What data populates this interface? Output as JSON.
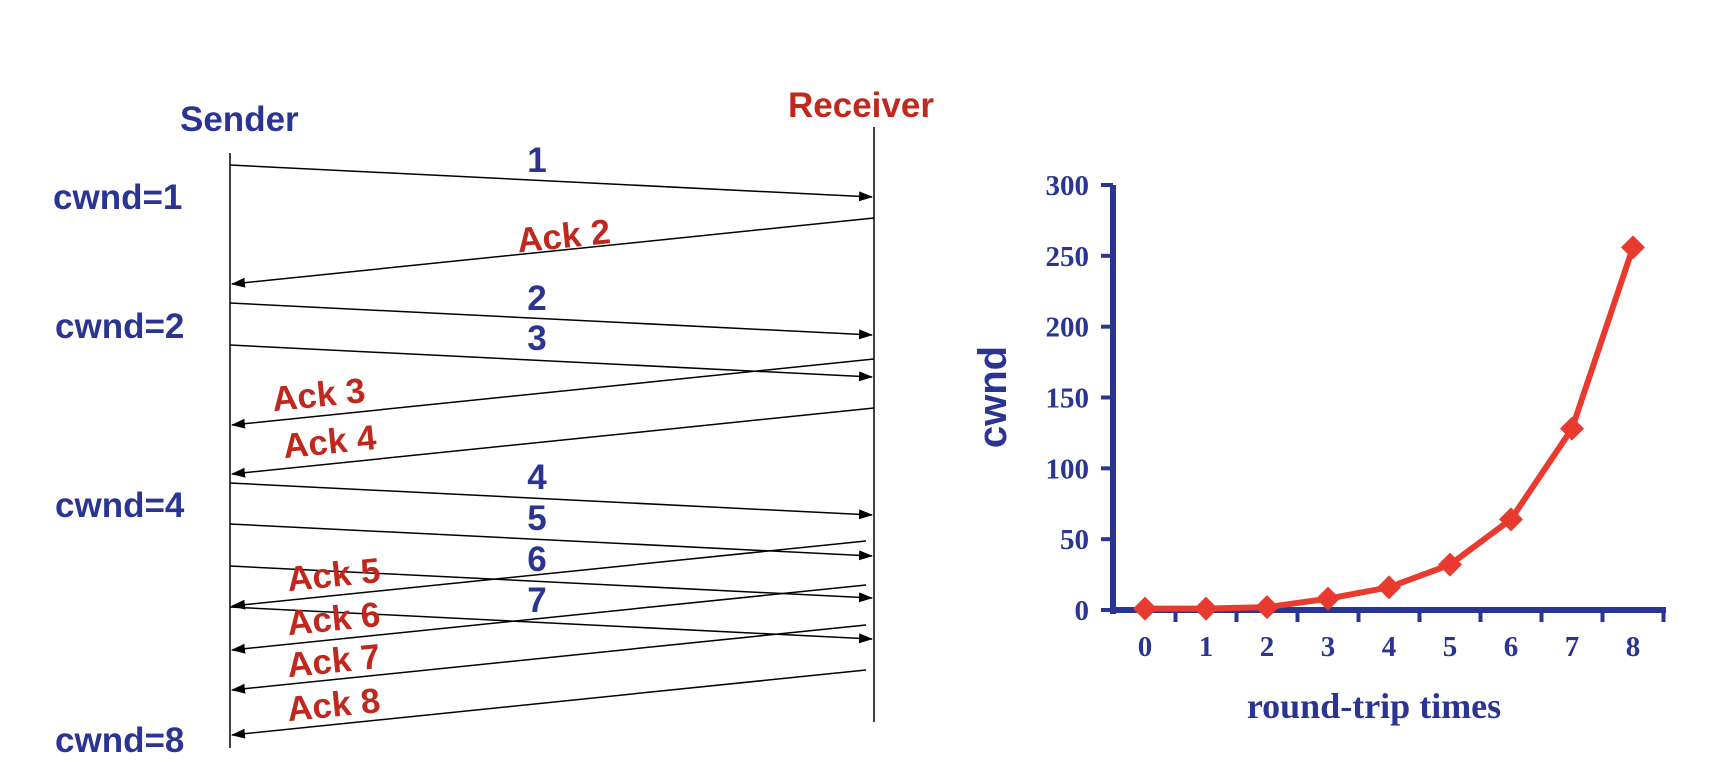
{
  "diagram": {
    "sender_label": "Sender",
    "receiver_label": "Receiver",
    "cwnd_labels": [
      "cwnd=1",
      "cwnd=2",
      "cwnd=4",
      "cwnd=8"
    ],
    "segments": [
      "1",
      "2",
      "3",
      "4",
      "5",
      "6",
      "7"
    ],
    "acks": [
      "Ack 2",
      "Ack 3",
      "Ack 4",
      "Ack 5",
      "Ack 6",
      "Ack 7",
      "Ack 8"
    ],
    "colors": {
      "blue": "#2a3593",
      "red": "#c0281e",
      "line": "#000000"
    }
  },
  "chart_data": {
    "type": "line",
    "xlabel": "round-trip times",
    "ylabel": "cwnd",
    "x": [
      0,
      1,
      2,
      3,
      4,
      5,
      6,
      7,
      8
    ],
    "series": [
      {
        "values": [
          1,
          1,
          2,
          8,
          16,
          32,
          64,
          128,
          256
        ]
      }
    ],
    "ylim": [
      0,
      300
    ],
    "yticks": [
      0,
      50,
      100,
      150,
      200,
      250,
      300
    ],
    "xticks": [
      "0",
      "1",
      "2",
      "3",
      "4",
      "5",
      "6",
      "7",
      "8"
    ],
    "grid": false,
    "line_color": "#e83a2e",
    "axis_color": "#2a3593"
  }
}
